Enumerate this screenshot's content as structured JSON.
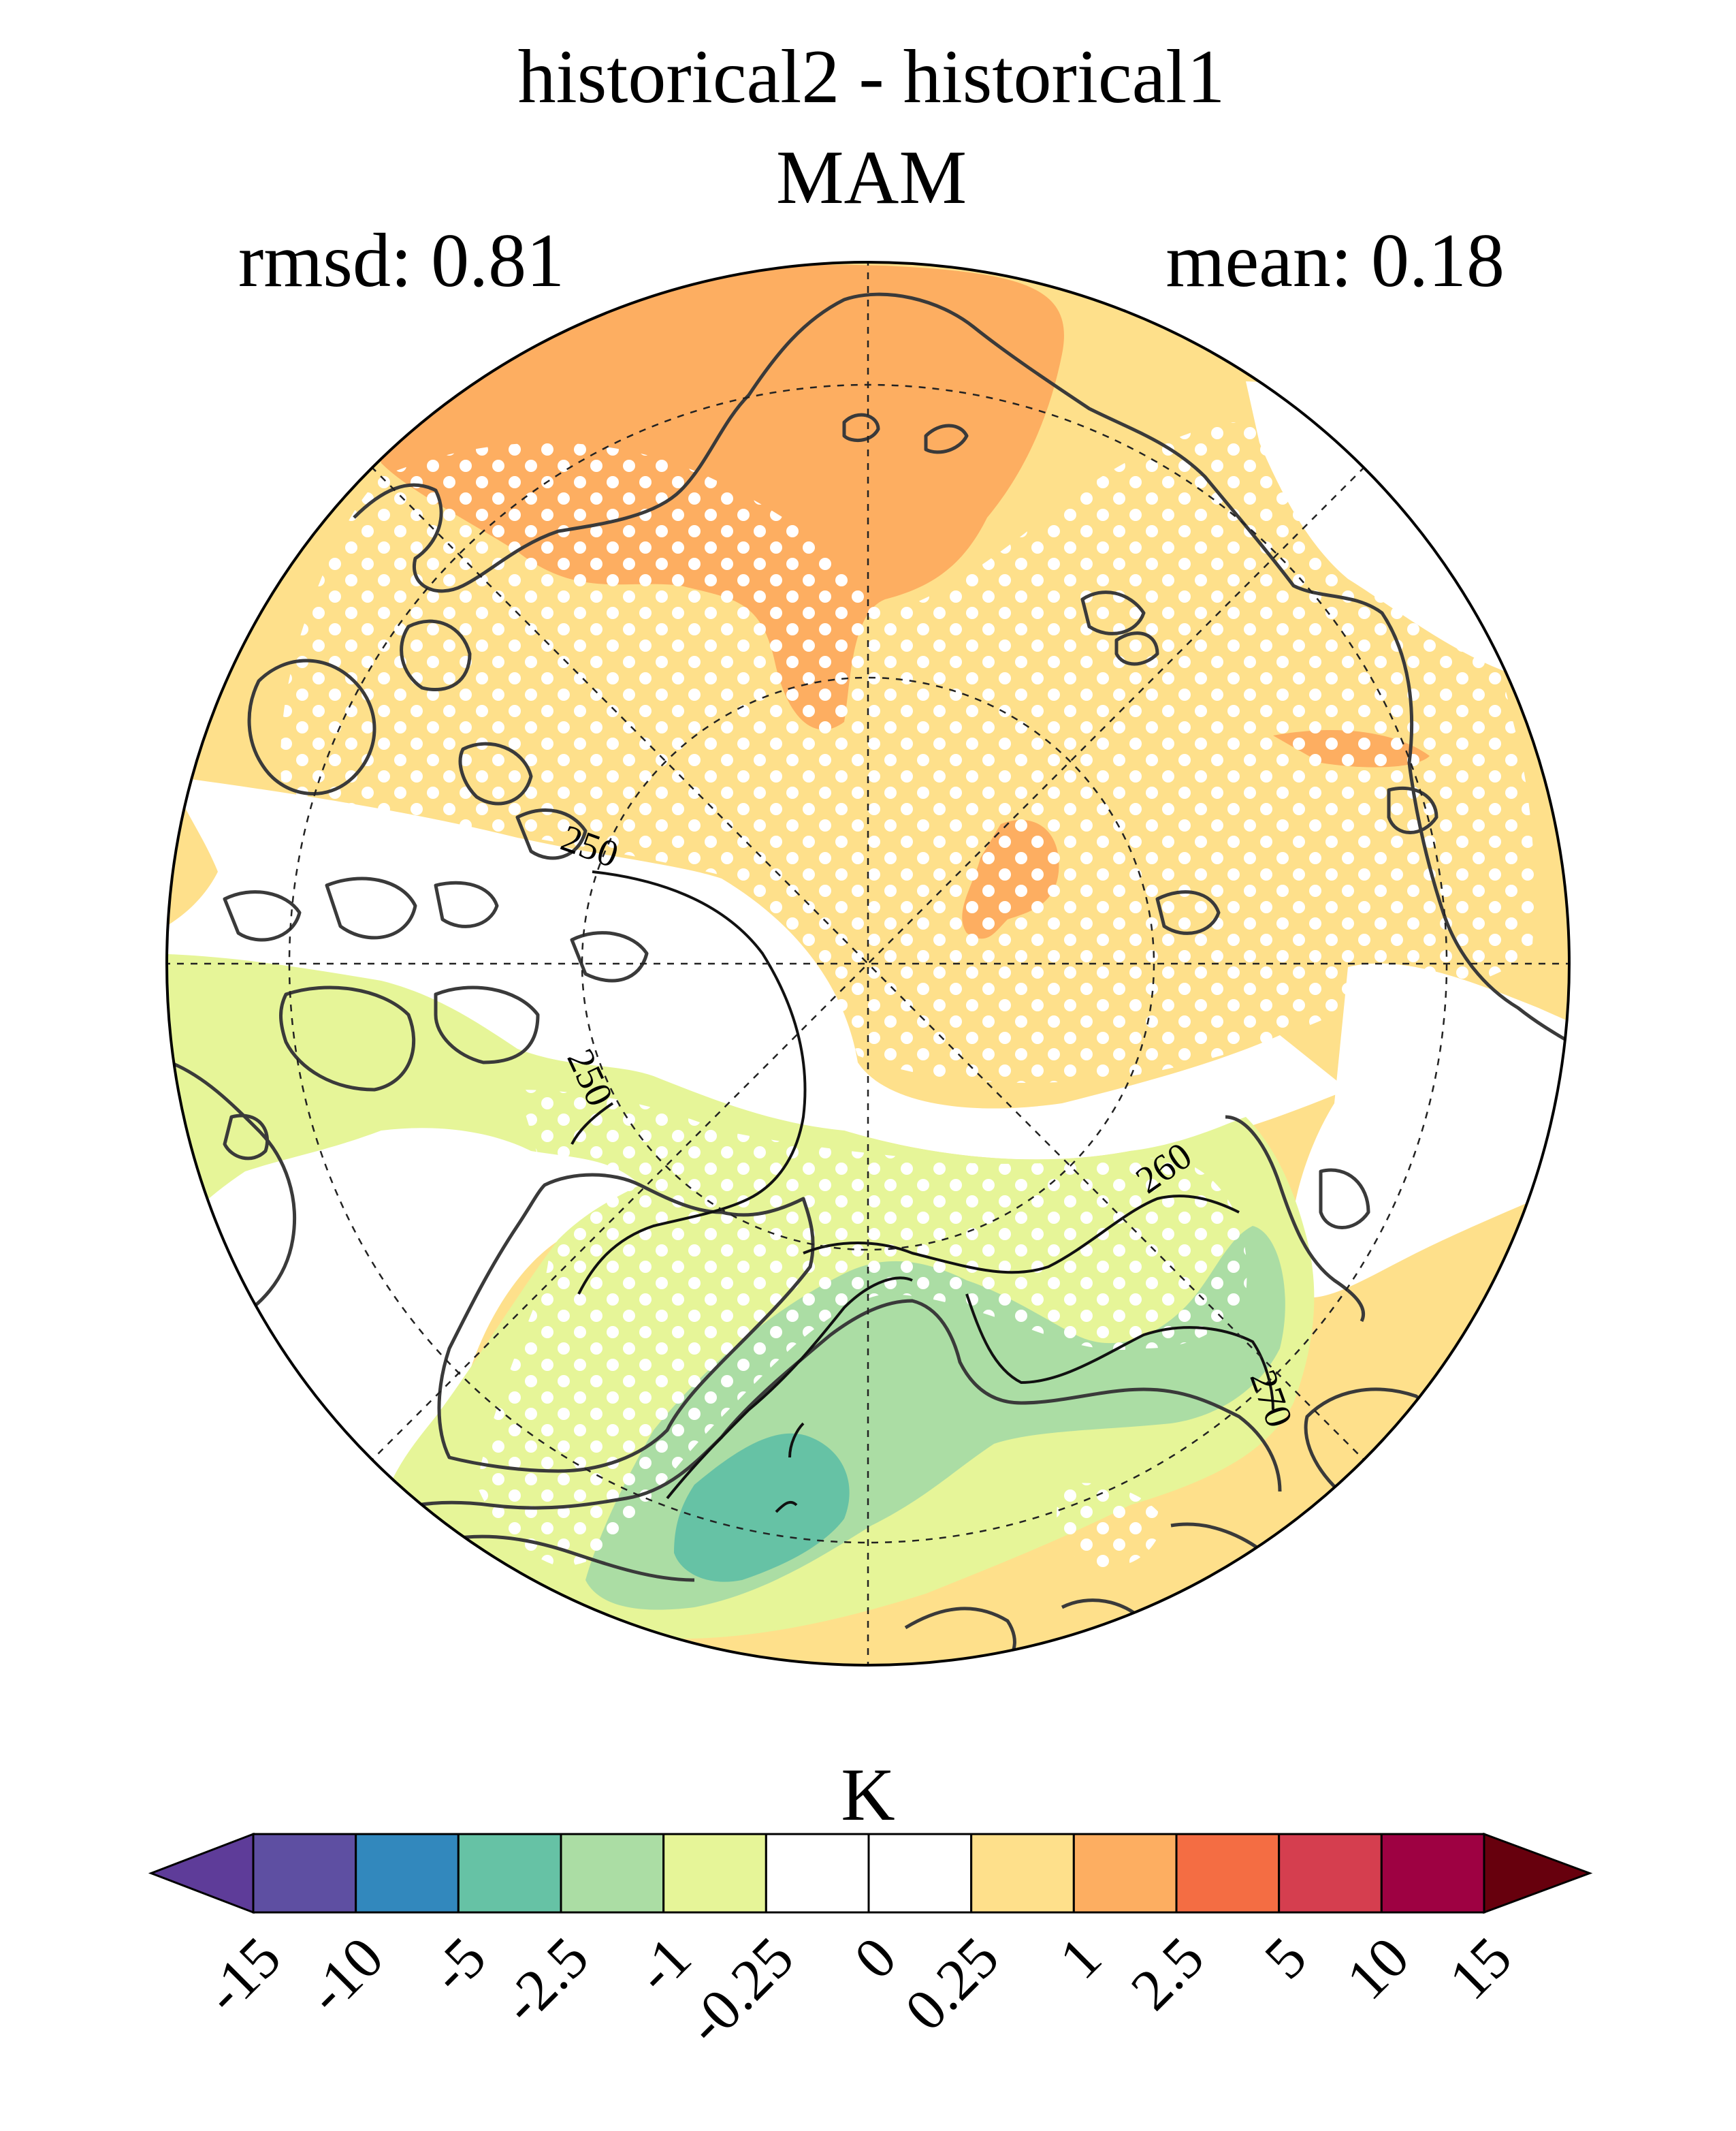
{
  "title": "historical2 - historical1",
  "subtitle": "MAM",
  "stats": {
    "left": "rmsd: 0.81",
    "right": "mean: 0.18"
  },
  "colorbar": {
    "unit_label": "K",
    "tick_labels": [
      "-15",
      "-10",
      "-5",
      "-2.5",
      "-1",
      "-0.25",
      "0",
      "0.25",
      "1",
      "2.5",
      "5",
      "10",
      "15"
    ],
    "colors": [
      "#5e4fa2",
      "#3288bd",
      "#66c2a5",
      "#abdda4",
      "#e6f598",
      "#ffffff",
      "#ffffff",
      "#fee08b",
      "#fdae61",
      "#f46d43",
      "#d53e4f",
      "#9e0142"
    ],
    "under_color": "#5e3c99",
    "over_color": "#67000d"
  },
  "contour_labels": [
    "250",
    "250",
    "260",
    "270"
  ],
  "map": {
    "projection": "north-polar-stereographic",
    "stippling": "white dots",
    "field_colors": {
      "orange": "#fdae61",
      "light_orange": "#fee08b",
      "yellow_green": "#e6f598",
      "light_green": "#abdda4",
      "green": "#66c2a5",
      "white": "#ffffff"
    }
  }
}
